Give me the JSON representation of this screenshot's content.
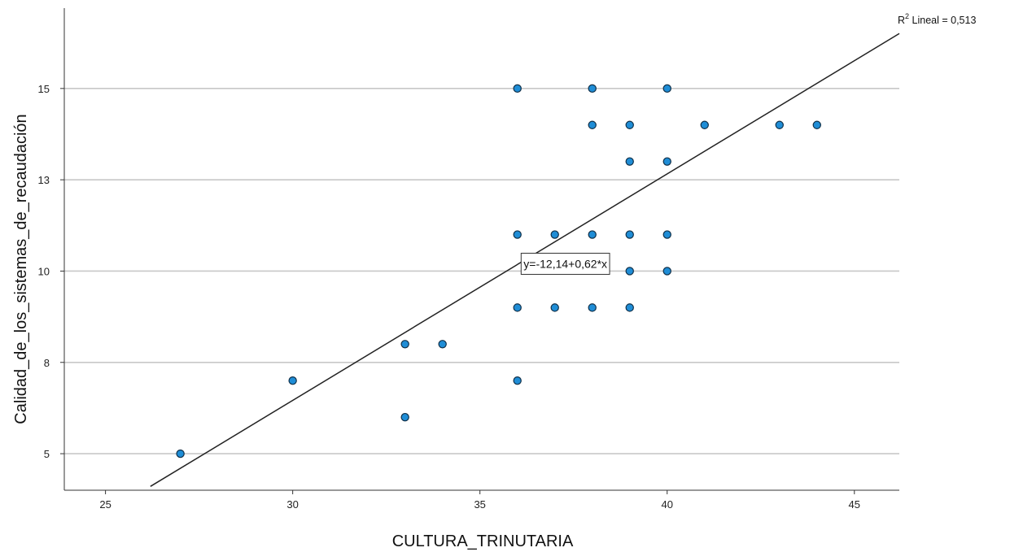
{
  "chart_data": {
    "type": "scatter",
    "title": "",
    "xlabel": "CULTURA_TRINUTARIA",
    "ylabel": "Calidad_de_los_sistemas_de_recaudación",
    "xlim": [
      23.9,
      46.2
    ],
    "ylim": [
      4.0,
      17.2
    ],
    "xticks": [
      25,
      30,
      35,
      40,
      45
    ],
    "yticks": [
      5,
      8,
      10,
      13,
      15
    ],
    "ytick_labels": [
      "5",
      "8",
      "10",
      "13",
      "15"
    ],
    "ygrid": [
      5,
      7.5,
      10,
      12.5,
      15
    ],
    "grid": "horizontal",
    "point_color": "#1f8dd6",
    "point_edge_color": "#0f2f48",
    "points": [
      {
        "x": 27,
        "y": 5
      },
      {
        "x": 30,
        "y": 7
      },
      {
        "x": 33,
        "y": 6
      },
      {
        "x": 33,
        "y": 8
      },
      {
        "x": 34,
        "y": 8
      },
      {
        "x": 36,
        "y": 7
      },
      {
        "x": 36,
        "y": 9
      },
      {
        "x": 36,
        "y": 11
      },
      {
        "x": 36,
        "y": 15
      },
      {
        "x": 37,
        "y": 9
      },
      {
        "x": 37,
        "y": 11
      },
      {
        "x": 38,
        "y": 9
      },
      {
        "x": 38,
        "y": 11
      },
      {
        "x": 38,
        "y": 14
      },
      {
        "x": 38,
        "y": 15
      },
      {
        "x": 39,
        "y": 9
      },
      {
        "x": 39,
        "y": 10
      },
      {
        "x": 39,
        "y": 11
      },
      {
        "x": 39,
        "y": 13
      },
      {
        "x": 39,
        "y": 14
      },
      {
        "x": 40,
        "y": 10
      },
      {
        "x": 40,
        "y": 11
      },
      {
        "x": 40,
        "y": 13
      },
      {
        "x": 40,
        "y": 15
      },
      {
        "x": 41,
        "y": 14
      },
      {
        "x": 43,
        "y": 14
      },
      {
        "x": 44,
        "y": 14
      }
    ],
    "fit_line": {
      "intercept": -12.14,
      "slope": 0.62,
      "x_start": 26.2,
      "x_end": 46.2,
      "equation_label": "y=-12,14+0,62*x",
      "equation_anchor": {
        "x": 36.1,
        "y": 10.2
      }
    },
    "r2_label": {
      "prefix": "R",
      "superscript": "2",
      "suffix": " Lineal = 0,513"
    }
  }
}
